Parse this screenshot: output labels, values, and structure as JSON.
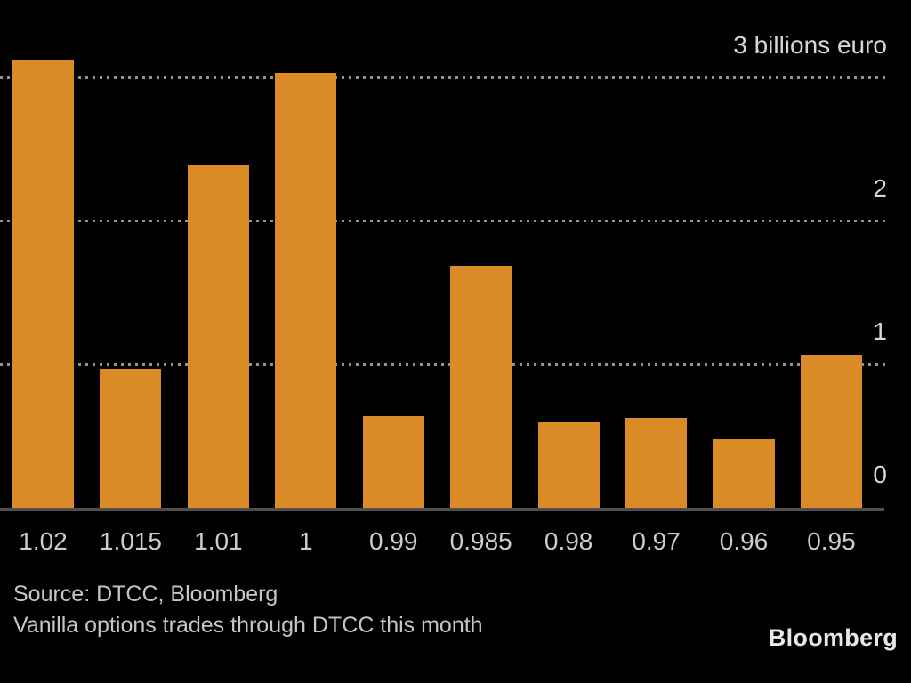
{
  "chart_data": {
    "type": "bar",
    "categories": [
      "1.02",
      "1.015",
      "1.01",
      "1",
      "0.99",
      "0.985",
      "0.98",
      "0.97",
      "0.96",
      "0.95"
    ],
    "values": [
      3.13,
      0.97,
      2.39,
      3.04,
      0.64,
      1.69,
      0.6,
      0.63,
      0.48,
      1.07
    ],
    "title": "",
    "xlabel": "",
    "ylabel": "billions euro",
    "ylim": [
      0,
      3
    ],
    "yticks": [
      {
        "value": 3,
        "label": "3 billions euro"
      },
      {
        "value": 2,
        "label": "2"
      },
      {
        "value": 1,
        "label": "1"
      },
      {
        "value": 0,
        "label": "0"
      }
    ],
    "grid": "horizontal-dotted",
    "legend": "none",
    "bar_color": "#DB8A28",
    "background_color": "#000000",
    "gridline_color": "#979390",
    "axis_line_color": "#4f4f4f"
  },
  "footer": {
    "source_line": "Source: DTCC, Bloomberg",
    "caption_line": "Vanilla options trades through DTCC this month",
    "brand": "Bloomberg"
  }
}
